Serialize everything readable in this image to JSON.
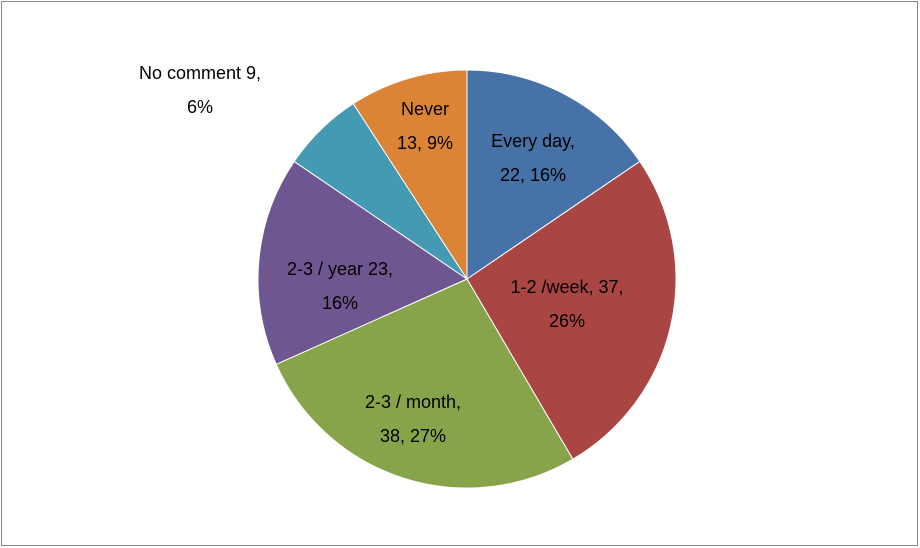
{
  "chart_data": {
    "type": "pie",
    "values": [
      22,
      37,
      38,
      23,
      9,
      13
    ],
    "value_labels": [
      [
        "Every day,",
        "22, 16%"
      ],
      [
        "1-2 /week, 37,",
        "26%"
      ],
      [
        "2-3 / month,",
        "38, 27%"
      ],
      [
        "2-3 / year 23,",
        "16%"
      ],
      [
        "No comment 9,",
        "6%"
      ],
      [
        "Never",
        "13, 9%"
      ]
    ],
    "colors": [
      "#4672a8",
      "#a94543",
      "#87a44b",
      "#6e5790",
      "#4499b3",
      "#db8436"
    ]
  }
}
